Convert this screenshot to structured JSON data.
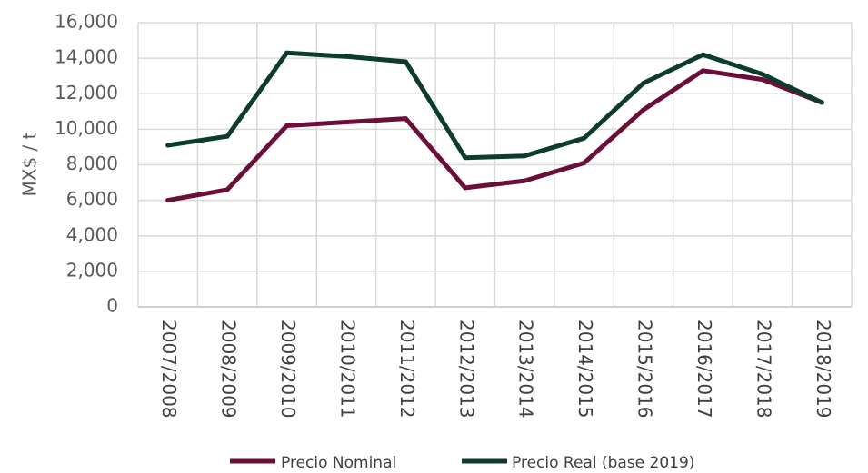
{
  "chart_data": {
    "type": "line",
    "title": "",
    "xlabel": "",
    "ylabel": "MX$ / t",
    "ylim": [
      0,
      16000
    ],
    "yticks": [
      "0",
      "2,000",
      "4,000",
      "6,000",
      "8,000",
      "10,000",
      "12,000",
      "14,000",
      "16,000"
    ],
    "grid": "on",
    "legend_placement": "bottom",
    "categories": [
      "2007/2008",
      "2008/2009",
      "2009/2010",
      "2010/2011",
      "2011/2012",
      "2012/2013",
      "2013/2014",
      "2014/2015",
      "2015/2016",
      "2016/2017",
      "2017/2018",
      "2018/2019"
    ],
    "series": [
      {
        "name": "Precio Nominal",
        "color": "#6b0f3a",
        "values": [
          6000,
          6600,
          10200,
          10400,
          10600,
          6700,
          7100,
          8100,
          11100,
          13300,
          12800,
          11500
        ]
      },
      {
        "name": "Precio Real (base 2019)",
        "color": "#0d3b2e",
        "values": [
          9100,
          9600,
          14300,
          14100,
          13800,
          8400,
          8500,
          9500,
          12600,
          14200,
          13100,
          11500
        ]
      }
    ]
  }
}
